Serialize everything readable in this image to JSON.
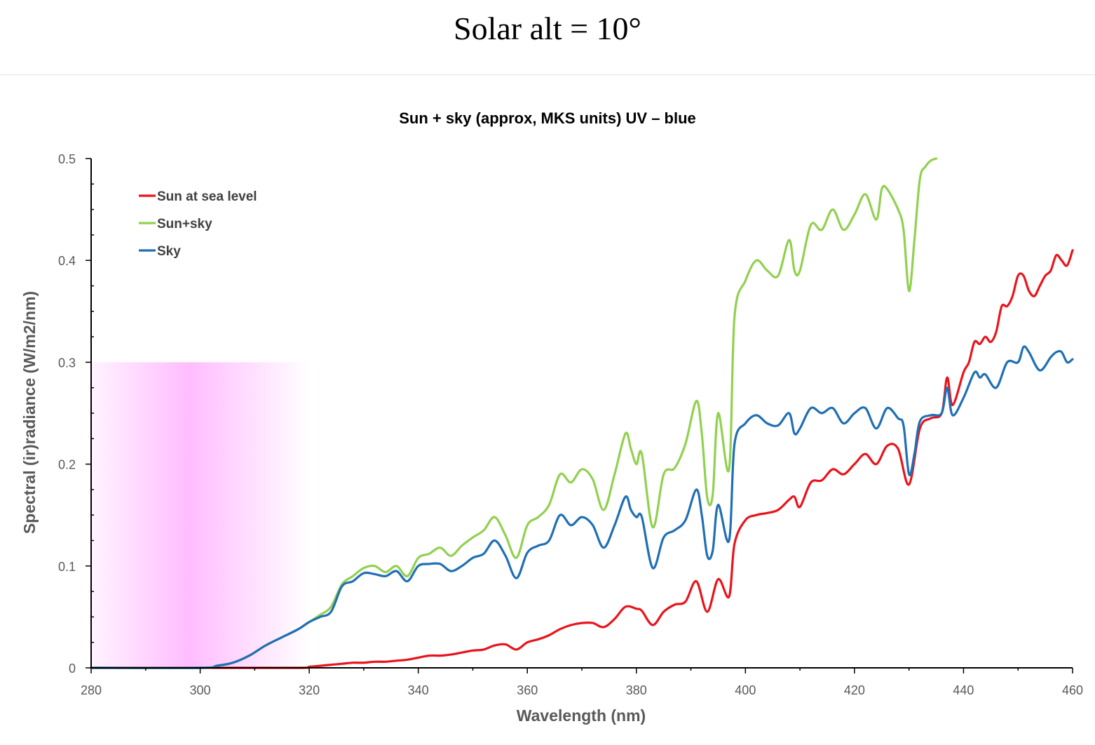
{
  "page": {
    "title": "Solar alt = 10°"
  },
  "chart_data": {
    "type": "line",
    "title": "Sun + sky (approx, MKS units) UV – blue",
    "xlabel": "Wavelength (nm)",
    "ylabel": "Spectral (ir)radiance (W/m2/nm)",
    "xlim": [
      280,
      460
    ],
    "ylim": [
      0,
      0.5
    ],
    "xticks": [
      280,
      300,
      320,
      340,
      360,
      380,
      400,
      420,
      440,
      460
    ],
    "yticks": [
      0,
      0.1,
      0.2,
      0.3,
      0.4,
      0.5
    ],
    "xtick_labels": [
      "280",
      "300",
      "320",
      "340",
      "360",
      "380",
      "400",
      "420",
      "440",
      "460"
    ],
    "ytick_labels": [
      "0",
      "0.1",
      "0.2",
      "0.3",
      "0.4",
      "0.5"
    ],
    "legend_position": "top-left",
    "grid": false,
    "uv_band": {
      "x": [
        280,
        320
      ],
      "y": [
        0,
        0.3
      ],
      "color": "#ff99ff"
    },
    "series": [
      {
        "name": "Sun at sea level",
        "color": "#e8141c",
        "x": [
          280,
          300,
          318,
          320,
          322,
          324,
          326,
          328,
          330,
          332,
          334,
          336,
          338,
          340,
          342,
          344,
          346,
          348,
          350,
          352,
          354,
          356,
          358,
          360,
          362,
          364,
          366,
          368,
          370,
          372,
          374,
          376,
          378,
          380,
          381,
          383,
          385,
          387,
          389,
          391,
          393,
          395,
          397,
          398,
          400,
          402,
          404,
          406,
          408,
          409,
          410,
          412,
          414,
          416,
          418,
          420,
          422,
          424,
          426,
          428,
          430,
          432,
          434,
          436,
          437,
          438,
          440,
          441,
          442,
          443,
          444,
          445,
          446,
          447,
          448,
          449,
          450,
          451,
          452,
          453,
          454,
          455,
          456,
          457,
          458,
          459,
          460
        ],
        "y": [
          0,
          0,
          0,
          0.001,
          0.002,
          0.003,
          0.004,
          0.005,
          0.005,
          0.006,
          0.006,
          0.007,
          0.008,
          0.01,
          0.012,
          0.012,
          0.013,
          0.015,
          0.017,
          0.018,
          0.022,
          0.023,
          0.018,
          0.025,
          0.028,
          0.032,
          0.038,
          0.042,
          0.044,
          0.044,
          0.04,
          0.048,
          0.06,
          0.058,
          0.056,
          0.042,
          0.055,
          0.062,
          0.065,
          0.085,
          0.055,
          0.087,
          0.07,
          0.122,
          0.145,
          0.15,
          0.152,
          0.155,
          0.165,
          0.168,
          0.158,
          0.182,
          0.184,
          0.195,
          0.19,
          0.2,
          0.21,
          0.2,
          0.218,
          0.215,
          0.18,
          0.235,
          0.245,
          0.25,
          0.285,
          0.258,
          0.29,
          0.3,
          0.32,
          0.318,
          0.325,
          0.32,
          0.33,
          0.355,
          0.355,
          0.365,
          0.385,
          0.385,
          0.37,
          0.365,
          0.375,
          0.385,
          0.39,
          0.405,
          0.4,
          0.395,
          0.41
        ]
      },
      {
        "name": "Sun+sky",
        "color": "#92d050",
        "x": [
          280,
          300,
          303,
          306,
          309,
          312,
          315,
          318,
          320,
          322,
          324,
          326,
          328,
          330,
          332,
          334,
          336,
          338,
          340,
          342,
          344,
          346,
          348,
          350,
          352,
          354,
          356,
          358,
          360,
          362,
          364,
          366,
          368,
          370,
          372,
          374,
          376,
          378,
          379,
          380,
          381,
          383,
          385,
          387,
          389,
          391,
          392,
          393,
          394,
          395,
          397,
          398,
          400,
          402,
          404,
          406,
          408,
          409,
          410,
          412,
          414,
          416,
          418,
          420,
          422,
          424,
          425,
          426,
          428,
          429,
          430,
          431,
          432,
          433,
          434,
          435
        ],
        "y": [
          0,
          0,
          0.002,
          0.005,
          0.012,
          0.022,
          0.03,
          0.038,
          0.045,
          0.052,
          0.06,
          0.082,
          0.09,
          0.098,
          0.1,
          0.094,
          0.1,
          0.09,
          0.108,
          0.112,
          0.118,
          0.11,
          0.12,
          0.128,
          0.135,
          0.148,
          0.13,
          0.108,
          0.14,
          0.148,
          0.16,
          0.19,
          0.182,
          0.195,
          0.185,
          0.155,
          0.19,
          0.23,
          0.215,
          0.2,
          0.21,
          0.138,
          0.19,
          0.196,
          0.22,
          0.262,
          0.23,
          0.167,
          0.17,
          0.25,
          0.195,
          0.345,
          0.38,
          0.4,
          0.39,
          0.385,
          0.42,
          0.39,
          0.39,
          0.435,
          0.43,
          0.45,
          0.43,
          0.445,
          0.465,
          0.44,
          0.47,
          0.47,
          0.45,
          0.43,
          0.37,
          0.42,
          0.48,
          0.492,
          0.498,
          0.5
        ]
      },
      {
        "name": "Sky",
        "color": "#1f6fb4",
        "x": [
          280,
          300,
          303,
          306,
          309,
          312,
          315,
          318,
          320,
          322,
          324,
          326,
          328,
          330,
          332,
          334,
          336,
          338,
          340,
          342,
          344,
          346,
          348,
          350,
          352,
          354,
          356,
          358,
          360,
          362,
          364,
          366,
          368,
          370,
          372,
          374,
          376,
          378,
          379,
          380,
          381,
          383,
          385,
          387,
          389,
          391,
          392,
          393,
          394,
          395,
          397,
          398,
          400,
          402,
          404,
          406,
          408,
          409,
          410,
          412,
          414,
          416,
          418,
          420,
          422,
          424,
          426,
          428,
          429,
          430,
          431,
          432,
          434,
          436,
          437,
          438,
          440,
          442,
          443,
          444,
          446,
          448,
          450,
          451,
          452,
          454,
          456,
          457,
          458,
          459,
          460
        ],
        "y": [
          0,
          0,
          0.002,
          0.005,
          0.012,
          0.022,
          0.03,
          0.038,
          0.045,
          0.05,
          0.055,
          0.08,
          0.085,
          0.093,
          0.092,
          0.09,
          0.095,
          0.085,
          0.1,
          0.102,
          0.102,
          0.095,
          0.1,
          0.108,
          0.112,
          0.125,
          0.11,
          0.088,
          0.113,
          0.12,
          0.125,
          0.15,
          0.14,
          0.148,
          0.14,
          0.118,
          0.14,
          0.168,
          0.155,
          0.148,
          0.148,
          0.098,
          0.128,
          0.135,
          0.145,
          0.175,
          0.15,
          0.11,
          0.115,
          0.16,
          0.125,
          0.22,
          0.24,
          0.248,
          0.24,
          0.238,
          0.25,
          0.23,
          0.235,
          0.255,
          0.25,
          0.255,
          0.24,
          0.25,
          0.255,
          0.235,
          0.255,
          0.245,
          0.238,
          0.19,
          0.21,
          0.242,
          0.248,
          0.25,
          0.275,
          0.248,
          0.265,
          0.29,
          0.285,
          0.288,
          0.275,
          0.3,
          0.3,
          0.315,
          0.31,
          0.292,
          0.305,
          0.31,
          0.31,
          0.3,
          0.303
        ]
      }
    ]
  }
}
